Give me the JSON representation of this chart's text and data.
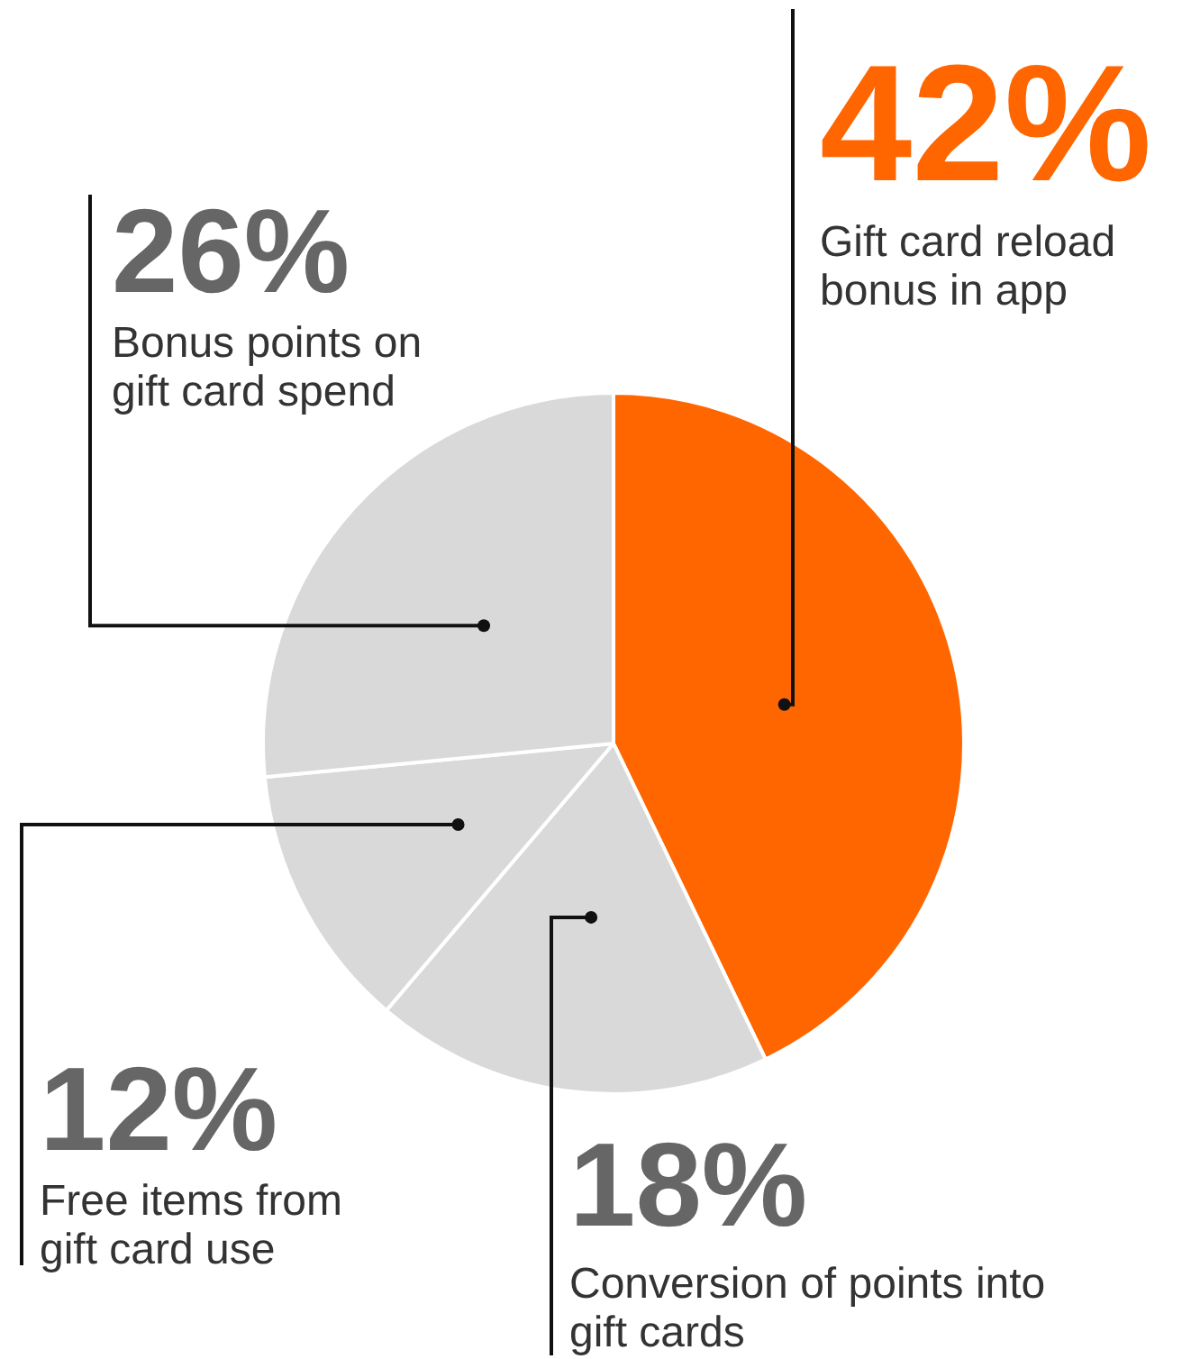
{
  "chart_data": {
    "type": "pie",
    "categories": [
      "Gift card reload bonus in app",
      "Conversion of points into gift cards",
      "Free items from gift card use",
      "Bonus points on gift card spend"
    ],
    "values": [
      42,
      18,
      12,
      26
    ],
    "colors": [
      "#ff6600",
      "#d9d9d9",
      "#d9d9d9",
      "#d9d9d9"
    ],
    "value_labels": [
      "42%",
      "18%",
      "12%",
      "26%"
    ]
  }
}
